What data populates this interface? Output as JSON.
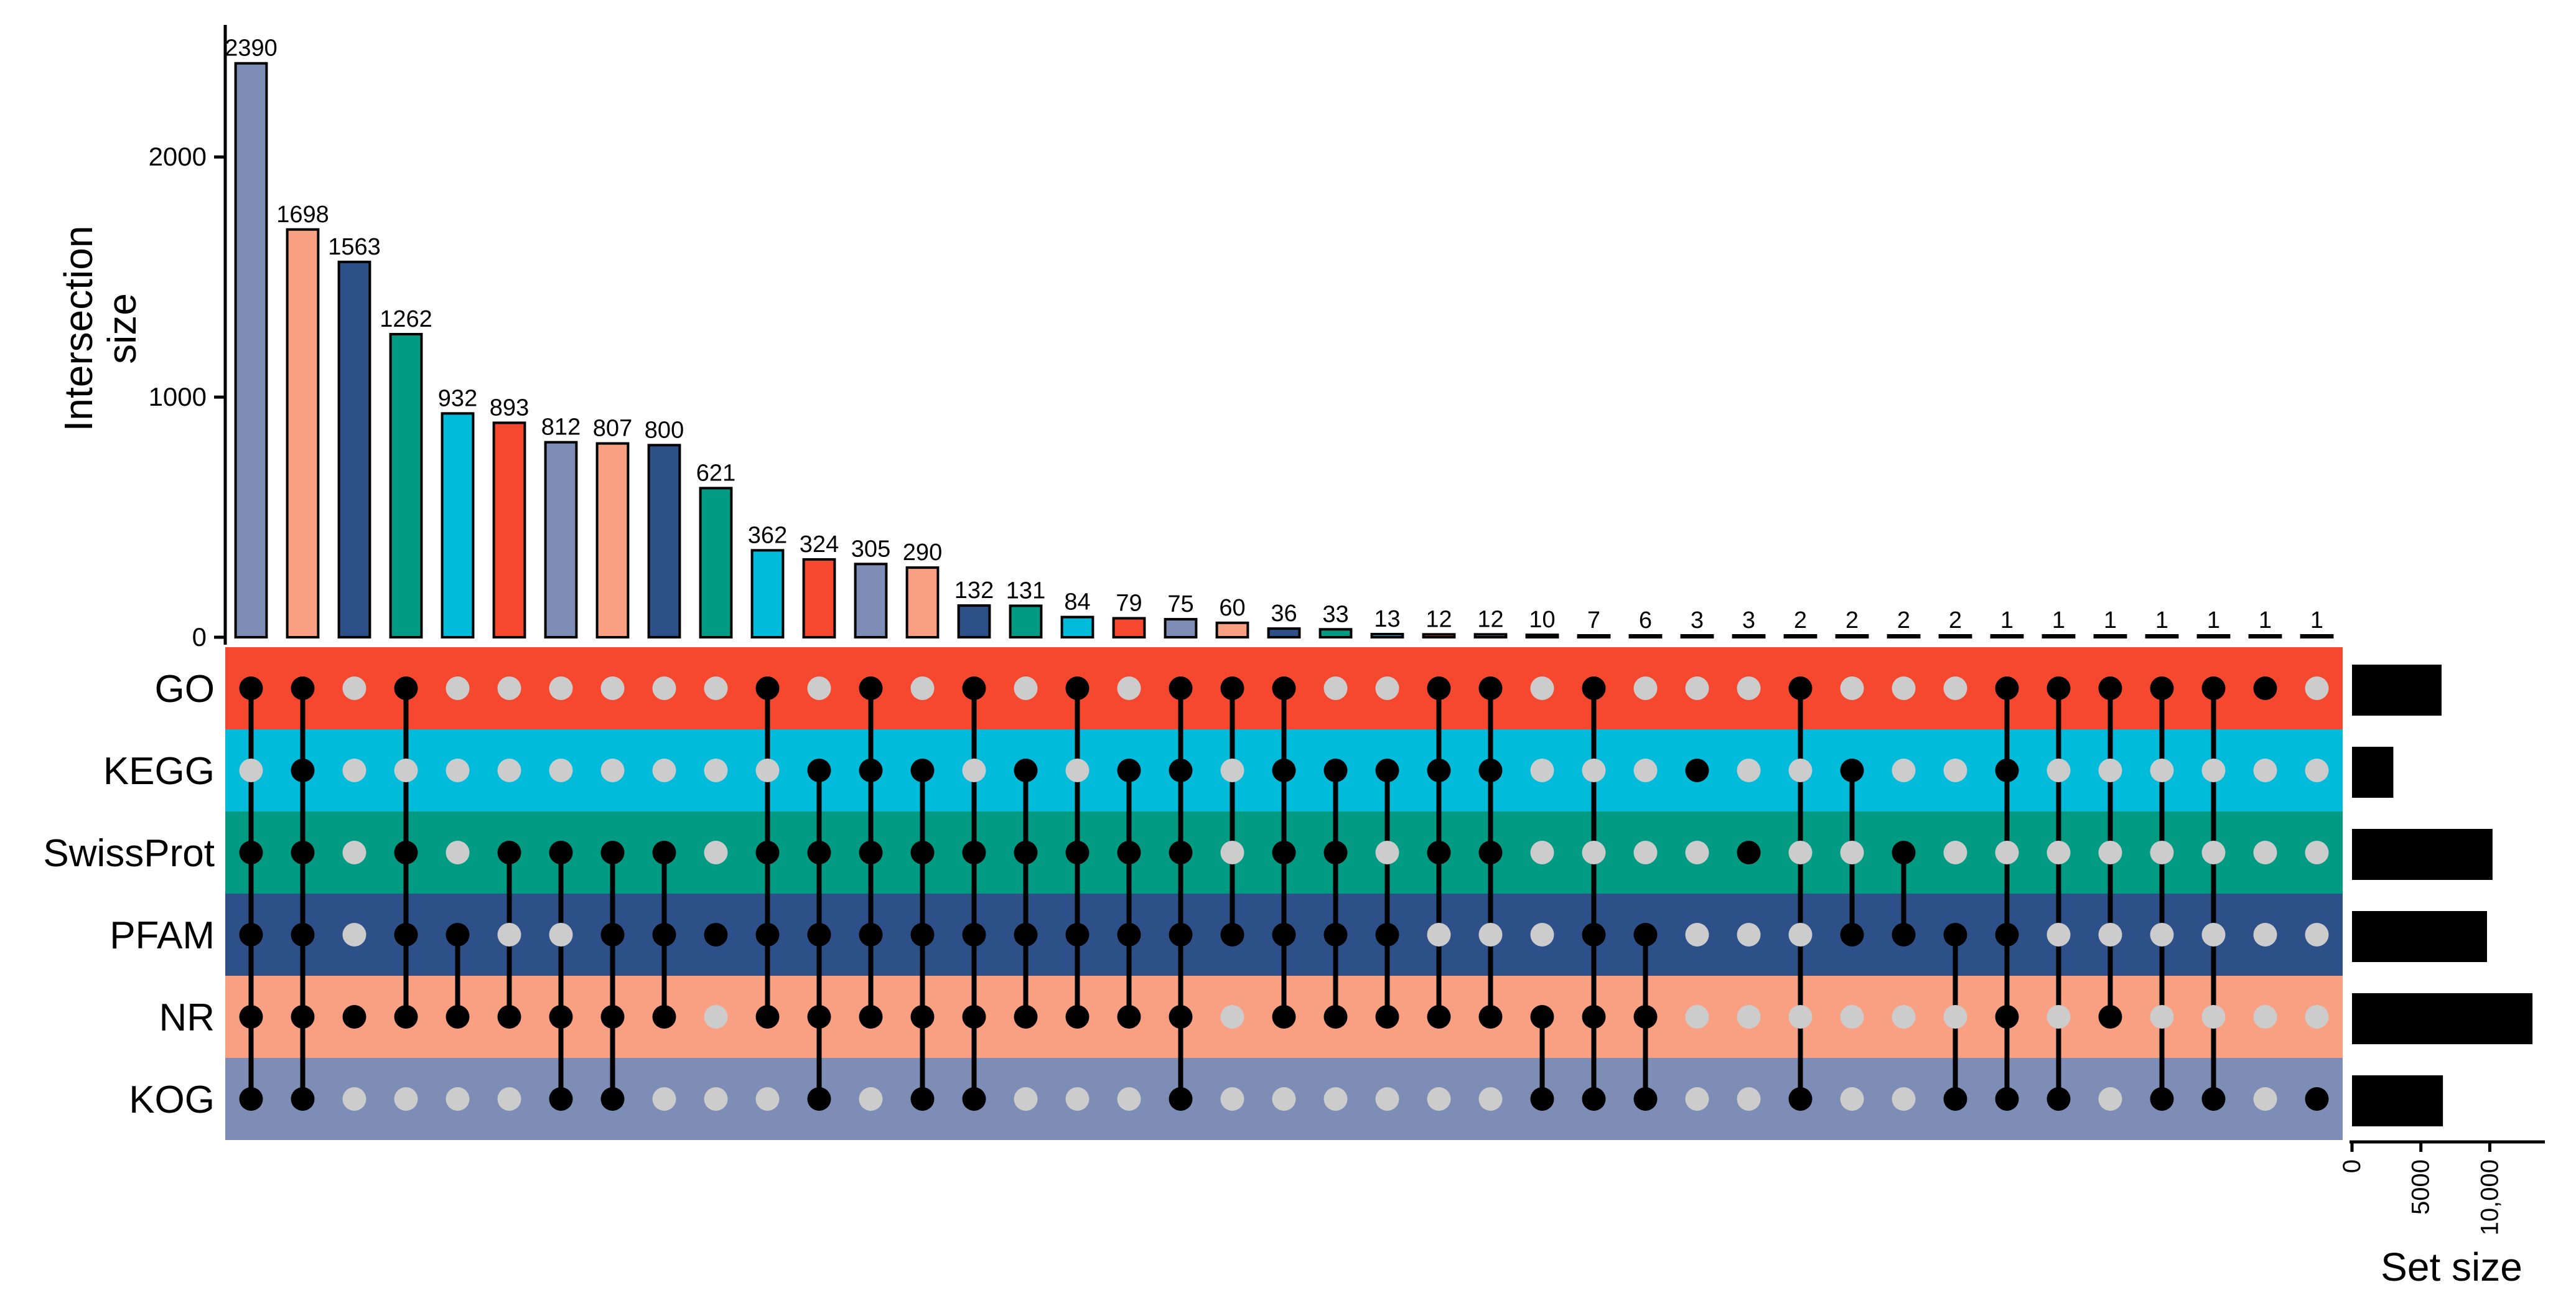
{
  "chart_data": {
    "type": "upset",
    "ylabel": "Intersection size",
    "set_size_label": "Set size",
    "ylim": [
      0,
      2550
    ],
    "y_ticks": [
      {
        "value": 0,
        "label": "0"
      },
      {
        "value": 1000,
        "label": "1000"
      },
      {
        "value": 2000,
        "label": "2000"
      }
    ],
    "sets": [
      {
        "name": "GO",
        "color": "#F6482E",
        "size": 6500
      },
      {
        "name": "KEGG",
        "color": "#00BBDA",
        "size": 3000
      },
      {
        "name": "SwissProt",
        "color": "#009B82",
        "size": 10200
      },
      {
        "name": "PFAM",
        "color": "#2E5088",
        "size": 9800
      },
      {
        "name": "NR",
        "color": "#F9A083",
        "size": 13100
      },
      {
        "name": "KOG",
        "color": "#7E8DB5",
        "size": 6600
      }
    ],
    "set_size_ticks": [
      {
        "value": 0,
        "label": "0"
      },
      {
        "value": 5000,
        "label": "5000"
      },
      {
        "value": 10000,
        "label": "10,000"
      }
    ],
    "set_size_max": 14000,
    "bar_color_cycle": [
      "#7E8DB5",
      "#F9A083",
      "#2E5088",
      "#009B82",
      "#00BBDA",
      "#F6482E"
    ],
    "intersections": [
      {
        "size": 2390,
        "label": "2390",
        "sets": [
          "GO",
          "SwissProt",
          "PFAM",
          "NR",
          "KOG"
        ]
      },
      {
        "size": 1698,
        "label": "1698",
        "sets": [
          "GO",
          "KEGG",
          "SwissProt",
          "PFAM",
          "NR",
          "KOG"
        ]
      },
      {
        "size": 1563,
        "label": "1563",
        "sets": [
          "NR"
        ]
      },
      {
        "size": 1262,
        "label": "1262",
        "sets": [
          "GO",
          "SwissProt",
          "PFAM",
          "NR"
        ]
      },
      {
        "size": 932,
        "label": "932",
        "sets": [
          "PFAM",
          "NR"
        ]
      },
      {
        "size": 893,
        "label": "893",
        "sets": [
          "SwissProt",
          "NR"
        ]
      },
      {
        "size": 812,
        "label": "812",
        "sets": [
          "SwissProt",
          "NR",
          "KOG"
        ]
      },
      {
        "size": 807,
        "label": "807",
        "sets": [
          "SwissProt",
          "PFAM",
          "NR",
          "KOG"
        ]
      },
      {
        "size": 800,
        "label": "800",
        "sets": [
          "SwissProt",
          "PFAM",
          "NR"
        ]
      },
      {
        "size": 621,
        "label": "621",
        "sets": [
          "PFAM"
        ]
      },
      {
        "size": 362,
        "label": "362",
        "sets": [
          "GO",
          "SwissProt",
          "PFAM",
          "NR"
        ]
      },
      {
        "size": 324,
        "label": "324",
        "sets": [
          "KEGG",
          "SwissProt",
          "PFAM",
          "NR",
          "KOG"
        ]
      },
      {
        "size": 305,
        "label": "305",
        "sets": [
          "GO",
          "KEGG",
          "SwissProt",
          "PFAM",
          "NR"
        ]
      },
      {
        "size": 290,
        "label": "290",
        "sets": [
          "KEGG",
          "SwissProt",
          "PFAM",
          "NR",
          "KOG"
        ]
      },
      {
        "size": 132,
        "label": "132",
        "sets": [
          "GO",
          "SwissProt",
          "PFAM",
          "NR",
          "KOG"
        ]
      },
      {
        "size": 131,
        "label": "131",
        "sets": [
          "KEGG",
          "SwissProt",
          "PFAM",
          "NR"
        ]
      },
      {
        "size": 84,
        "label": "84",
        "sets": [
          "GO",
          "SwissProt",
          "PFAM",
          "NR"
        ]
      },
      {
        "size": 79,
        "label": "79",
        "sets": [
          "KEGG",
          "SwissProt",
          "PFAM",
          "NR"
        ]
      },
      {
        "size": 75,
        "label": "75",
        "sets": [
          "GO",
          "KEGG",
          "SwissProt",
          "PFAM",
          "NR",
          "KOG"
        ]
      },
      {
        "size": 60,
        "label": "60",
        "sets": [
          "GO",
          "PFAM"
        ]
      },
      {
        "size": 36,
        "label": "36",
        "sets": [
          "GO",
          "KEGG",
          "SwissProt",
          "PFAM",
          "NR"
        ]
      },
      {
        "size": 33,
        "label": "33",
        "sets": [
          "KEGG",
          "SwissProt",
          "PFAM",
          "NR"
        ]
      },
      {
        "size": 13,
        "label": "13",
        "sets": [
          "KEGG",
          "PFAM",
          "NR"
        ]
      },
      {
        "size": 12,
        "label": "12",
        "sets": [
          "GO",
          "KEGG",
          "SwissProt",
          "NR"
        ]
      },
      {
        "size": 12,
        "label": "12",
        "sets": [
          "GO",
          "KEGG",
          "SwissProt",
          "NR"
        ]
      },
      {
        "size": 10,
        "label": "10",
        "sets": [
          "NR",
          "KOG"
        ]
      },
      {
        "size": 7,
        "label": "7",
        "sets": [
          "GO",
          "PFAM",
          "NR",
          "KOG"
        ]
      },
      {
        "size": 6,
        "label": "6",
        "sets": [
          "PFAM",
          "NR",
          "KOG"
        ]
      },
      {
        "size": 3,
        "label": "3",
        "sets": [
          "KEGG"
        ]
      },
      {
        "size": 3,
        "label": "3",
        "sets": [
          "SwissProt"
        ]
      },
      {
        "size": 2,
        "label": "2",
        "sets": [
          "GO",
          "KOG"
        ]
      },
      {
        "size": 2,
        "label": "2",
        "sets": [
          "KEGG",
          "PFAM"
        ]
      },
      {
        "size": 2,
        "label": "2",
        "sets": [
          "SwissProt",
          "PFAM"
        ]
      },
      {
        "size": 2,
        "label": "2",
        "sets": [
          "PFAM",
          "KOG"
        ]
      },
      {
        "size": 1,
        "label": "1",
        "sets": [
          "GO",
          "KEGG",
          "PFAM",
          "NR",
          "KOG"
        ]
      },
      {
        "size": 1,
        "label": "1",
        "sets": [
          "GO",
          "KOG"
        ]
      },
      {
        "size": 1,
        "label": "1",
        "sets": [
          "GO",
          "NR"
        ]
      },
      {
        "size": 1,
        "label": "1",
        "sets": [
          "GO",
          "KOG"
        ]
      },
      {
        "size": 1,
        "label": "1",
        "sets": [
          "GO",
          "KOG"
        ]
      },
      {
        "size": 1,
        "label": "1",
        "sets": [
          "GO"
        ]
      },
      {
        "size": 1,
        "label": "1",
        "sets": [
          "KOG"
        ]
      }
    ]
  }
}
